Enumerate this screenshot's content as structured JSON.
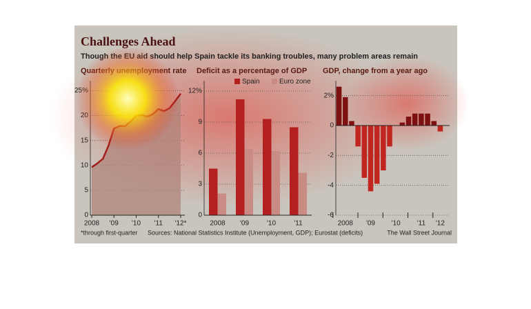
{
  "title": "Challenges Ahead",
  "subtitle": "Though the EU aid should help Spain tackle its banking troubles, many problem areas remain",
  "footnote": "*through first-quarter",
  "source": "Sources: National Statistics Institute (Unemployment, GDP); Eurostat (deficits)",
  "credit": "The Wall Street Journal",
  "chart_data": [
    {
      "type": "line",
      "title": "Quarterly unemployment rate",
      "categories": [
        "2008",
        null,
        null,
        null,
        "'09",
        null,
        null,
        null,
        "'10",
        null,
        null,
        null,
        "'11",
        null,
        null,
        null,
        "'12*"
      ],
      "values": [
        9.6,
        10.4,
        11.3,
        13.9,
        17.4,
        17.9,
        17.9,
        18.8,
        20.0,
        20.1,
        19.8,
        20.3,
        21.3,
        20.9,
        21.5,
        22.9,
        24.4
      ],
      "color": "#a31d1d",
      "area_color": "#b0847a",
      "ylim": [
        0,
        27
      ],
      "yticks": [
        0,
        5,
        10,
        15,
        20,
        {
          "value": 25,
          "label": "25%"
        }
      ],
      "grid": true
    },
    {
      "type": "bar",
      "title": "Deficit as a percentage of GDP",
      "categories": [
        "2008",
        "'09",
        "'10",
        "'11"
      ],
      "series": [
        {
          "name": "Spain",
          "color": "#b3201f",
          "values": [
            4.5,
            11.2,
            9.3,
            8.5
          ]
        },
        {
          "name": "Euro zone",
          "color": "#c98c84",
          "values": [
            2.1,
            6.4,
            6.2,
            4.1
          ]
        }
      ],
      "ylim": [
        0,
        13
      ],
      "yticks": [
        0,
        3,
        6,
        9,
        {
          "value": 12,
          "label": "12%"
        }
      ],
      "grid": true
    },
    {
      "type": "bar",
      "title": "GDP, change from a year ago",
      "categories": [
        null,
        "2008",
        null,
        null,
        null,
        "'09",
        null,
        null,
        null,
        "'10",
        null,
        null,
        null,
        "'11",
        null,
        null,
        "'12"
      ],
      "values": [
        2.6,
        1.9,
        0.3,
        -1.4,
        -3.5,
        -4.4,
        -3.9,
        -3.0,
        -1.4,
        0.0,
        0.2,
        0.6,
        0.8,
        0.8,
        0.8,
        0.3,
        -0.4
      ],
      "positive_color": "#7d1010",
      "negative_color": "#c0261f",
      "ylim": [
        -6,
        3
      ],
      "yticks": [
        -6,
        -4,
        -2,
        0,
        {
          "value": 2,
          "label": "2%"
        }
      ],
      "grid": true
    }
  ]
}
